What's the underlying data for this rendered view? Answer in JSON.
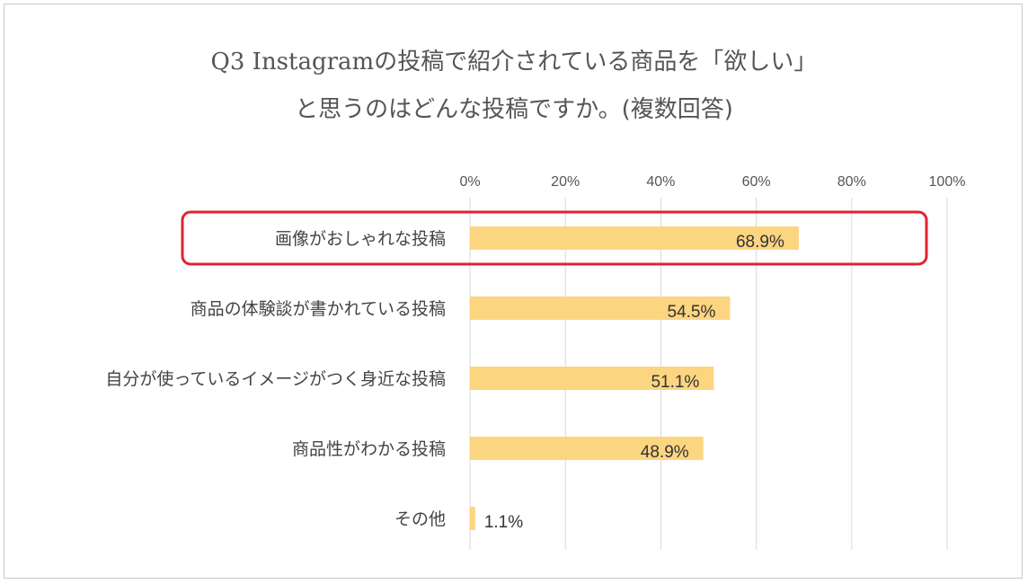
{
  "chart_data": {
    "type": "bar",
    "orientation": "horizontal",
    "title_lines": [
      "Q3 Instagramの投稿で紹介されている商品を「欲しい」",
      "と思うのはどんな投稿ですか。(複数回答)"
    ],
    "categories": [
      "画像がおしゃれな投稿",
      "商品の体験談が書かれている投稿",
      "自分が使っているイメージがつく身近な投稿",
      "商品性がわかる投稿",
      "その他"
    ],
    "values": [
      68.9,
      54.5,
      51.1,
      48.9,
      1.1
    ],
    "value_labels": [
      "68.9%",
      "54.5%",
      "51.1%",
      "48.9%",
      "1.1%"
    ],
    "xticks": [
      "0%",
      "20%",
      "40%",
      "60%",
      "80%",
      "100%"
    ],
    "xlim": [
      0,
      100
    ],
    "axis_position": "top",
    "grid": true,
    "highlighted_category_index": 0
  },
  "colors": {
    "bar": "#FCD581",
    "grid": "#d9d9d9",
    "highlight": "#E0232F",
    "border": "#c9c9c9",
    "title": "#555555"
  }
}
